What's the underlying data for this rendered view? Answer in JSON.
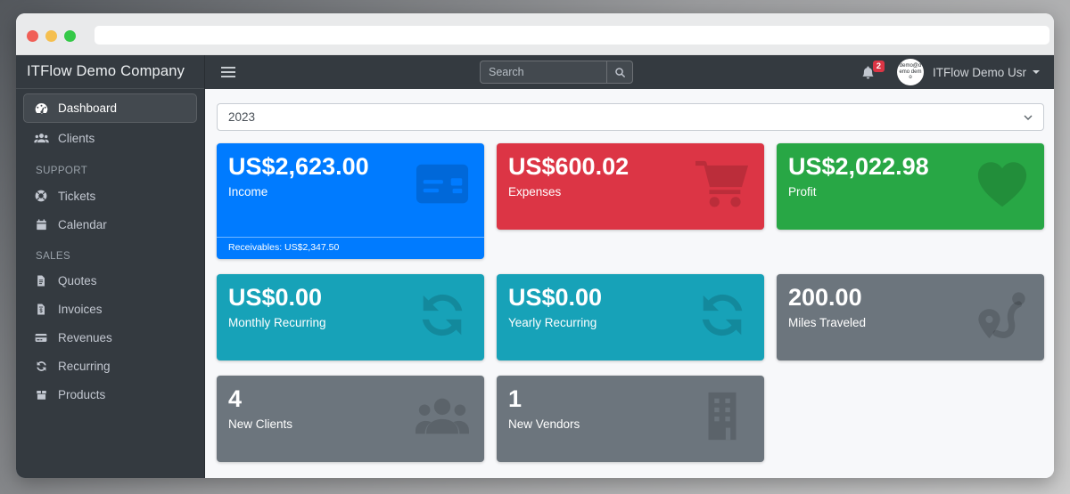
{
  "browser": {
    "url": "",
    "traffic_lights": [
      "#f05f57",
      "#f5bf4f",
      "#35c948"
    ]
  },
  "header": {
    "brand": "ITFlow Demo Company",
    "search_placeholder": "Search",
    "notification_count": "2",
    "avatar_text": "demo@demo demo",
    "user_name": "ITFlow Demo Usr"
  },
  "sidebar": {
    "sections": [
      {
        "header": null,
        "items": [
          {
            "label": "Dashboard",
            "icon": "tachometer",
            "active": true
          },
          {
            "label": "Clients",
            "icon": "users",
            "active": false
          }
        ]
      },
      {
        "header": "SUPPORT",
        "items": [
          {
            "label": "Tickets",
            "icon": "life-ring",
            "active": false
          },
          {
            "label": "Calendar",
            "icon": "calendar",
            "active": false
          }
        ]
      },
      {
        "header": "SALES",
        "items": [
          {
            "label": "Quotes",
            "icon": "file-lines",
            "active": false
          },
          {
            "label": "Invoices",
            "icon": "file-invoice-dollar",
            "active": false
          },
          {
            "label": "Revenues",
            "icon": "credit-card",
            "active": false
          },
          {
            "label": "Recurring",
            "icon": "sync",
            "active": false
          },
          {
            "label": "Products",
            "icon": "box",
            "active": false
          }
        ]
      }
    ]
  },
  "main": {
    "year_select": "2023",
    "cards": [
      {
        "value": "US$2,623.00",
        "label": "Income",
        "footer": "Receivables: US$2,347.50",
        "color": "#007bff",
        "icon": "credit-card"
      },
      {
        "value": "US$600.02",
        "label": "Expenses",
        "footer": null,
        "color": "#dc3545",
        "icon": "shopping-cart"
      },
      {
        "value": "US$2,022.98",
        "label": "Profit",
        "footer": null,
        "color": "#28a745",
        "icon": "heart"
      },
      {
        "value": "US$0.00",
        "label": "Monthly Recurring",
        "footer": null,
        "color": "#17a2b8",
        "icon": "sync"
      },
      {
        "value": "US$0.00",
        "label": "Yearly Recurring",
        "footer": null,
        "color": "#17a2b8",
        "icon": "sync"
      },
      {
        "value": "200.00",
        "label": "Miles Traveled",
        "footer": null,
        "color": "#6c757d",
        "icon": "route"
      },
      {
        "value": "4",
        "label": "New Clients",
        "footer": null,
        "color": "#6c757d",
        "icon": "users"
      },
      {
        "value": "1",
        "label": "New Vendors",
        "footer": null,
        "color": "#6c757d",
        "icon": "building"
      }
    ]
  }
}
